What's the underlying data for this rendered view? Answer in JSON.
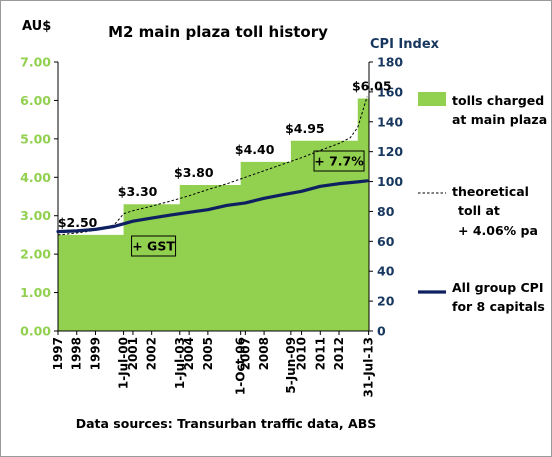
{
  "chart_data": {
    "type": "area",
    "title": "M2 main plaza toll history",
    "ylabel_left": "AU$",
    "ylabel_right": "CPI Index",
    "ylim_left": [
      0,
      7
    ],
    "yticks_left": [
      "0.00",
      "1.00",
      "2.00",
      "3.00",
      "4.00",
      "5.00",
      "6.00",
      "7.00"
    ],
    "ylim_right": [
      0,
      180
    ],
    "yticks_right": [
      "0",
      "20",
      "40",
      "60",
      "80",
      "100",
      "120",
      "140",
      "160",
      "180"
    ],
    "xlim": [
      1997,
      2013.6
    ],
    "x_tick_labels": [
      {
        "label": "1997",
        "x": 1997
      },
      {
        "label": "1998",
        "x": 1998
      },
      {
        "label": "1999",
        "x": 1999
      },
      {
        "label": "1-Jul-00",
        "x": 2000.5
      },
      {
        "label": "2001",
        "x": 2001
      },
      {
        "label": "2002",
        "x": 2002
      },
      {
        "label": "1-Jul-03",
        "x": 2003.5
      },
      {
        "label": "2004",
        "x": 2004
      },
      {
        "label": "2005",
        "x": 2005
      },
      {
        "label": "1-Oct-06",
        "x": 2006.75
      },
      {
        "label": "2007",
        "x": 2007
      },
      {
        "label": "2008",
        "x": 2008
      },
      {
        "label": "5-Jun-09",
        "x": 2009.43
      },
      {
        "label": "2010",
        "x": 2010
      },
      {
        "label": "2011",
        "x": 2011
      },
      {
        "label": "2012",
        "x": 2012
      },
      {
        "label": "31-Jul-13",
        "x": 2013.58
      }
    ],
    "series": [
      {
        "name": "tolls charged at main plaza",
        "kind": "area-step",
        "color": "#92d050",
        "axis": "left",
        "points": [
          {
            "x": 1997,
            "y": 2.5
          },
          {
            "x": 2000.5,
            "y": 2.5
          },
          {
            "x": 2000.5,
            "y": 3.3
          },
          {
            "x": 2003.5,
            "y": 3.3
          },
          {
            "x": 2003.5,
            "y": 3.8
          },
          {
            "x": 2006.75,
            "y": 3.8
          },
          {
            "x": 2006.75,
            "y": 4.4
          },
          {
            "x": 2009.43,
            "y": 4.4
          },
          {
            "x": 2009.43,
            "y": 4.95
          },
          {
            "x": 2013.0,
            "y": 4.95
          },
          {
            "x": 2013.0,
            "y": 6.05
          },
          {
            "x": 2013.6,
            "y": 6.05
          }
        ]
      },
      {
        "name": "theoretical toll at + 4.06% pa",
        "kind": "line",
        "color": "#000000",
        "dash": true,
        "axis": "left",
        "points": [
          {
            "x": 1997,
            "y": 2.5
          },
          {
            "x": 1998,
            "y": 2.55
          },
          {
            "x": 1999,
            "y": 2.62
          },
          {
            "x": 2000,
            "y": 2.76
          },
          {
            "x": 2000.5,
            "y": 3.05
          },
          {
            "x": 2001,
            "y": 3.13
          },
          {
            "x": 2002,
            "y": 3.25
          },
          {
            "x": 2003,
            "y": 3.38
          },
          {
            "x": 2004,
            "y": 3.52
          },
          {
            "x": 2005,
            "y": 3.68
          },
          {
            "x": 2006,
            "y": 3.83
          },
          {
            "x": 2007,
            "y": 4.0
          },
          {
            "x": 2008,
            "y": 4.17
          },
          {
            "x": 2009,
            "y": 4.34
          },
          {
            "x": 2010,
            "y": 4.51
          },
          {
            "x": 2011,
            "y": 4.7
          },
          {
            "x": 2012,
            "y": 4.88
          },
          {
            "x": 2012.6,
            "y": 5.03
          },
          {
            "x": 2013.0,
            "y": 5.3
          },
          {
            "x": 2013.5,
            "y": 6.1
          }
        ]
      },
      {
        "name": "All group CPI for 8 capitals",
        "kind": "line",
        "color": "#0f2060",
        "axis": "right",
        "points": [
          {
            "x": 1997,
            "y": 66.5
          },
          {
            "x": 1998,
            "y": 67.0
          },
          {
            "x": 1999,
            "y": 68.0
          },
          {
            "x": 2000,
            "y": 70.0
          },
          {
            "x": 2001,
            "y": 73.5
          },
          {
            "x": 2002,
            "y": 75.6
          },
          {
            "x": 2003,
            "y": 77.6
          },
          {
            "x": 2004,
            "y": 79.4
          },
          {
            "x": 2005,
            "y": 81.2
          },
          {
            "x": 2006,
            "y": 84.0
          },
          {
            "x": 2007,
            "y": 85.7
          },
          {
            "x": 2008,
            "y": 88.8
          },
          {
            "x": 2009,
            "y": 91.2
          },
          {
            "x": 2010,
            "y": 93.5
          },
          {
            "x": 2011,
            "y": 96.8
          },
          {
            "x": 2012,
            "y": 98.6
          },
          {
            "x": 2013,
            "y": 99.8
          },
          {
            "x": 2013.5,
            "y": 100.5
          }
        ]
      }
    ],
    "price_labels": [
      {
        "text": "$2.50",
        "x": 1997.3,
        "y": 2.5
      },
      {
        "text": "$3.30",
        "x": 2000.5,
        "y": 3.3
      },
      {
        "text": "$3.80",
        "x": 2003.5,
        "y": 3.8
      },
      {
        "text": "$4.40",
        "x": 2006.75,
        "y": 4.4
      },
      {
        "text": "$4.95",
        "x": 2009.43,
        "y": 4.95
      },
      {
        "text": "$6.05",
        "x": 2013.0,
        "y": 6.05
      }
    ],
    "annotations": {
      "gst": "+ GST",
      "cpi_growth": "+ 7.7%"
    },
    "legend": [
      {
        "label_line1": "tolls charged",
        "label_line2": "at main plaza",
        "swatch": "area"
      },
      {
        "label_line1": "theoretical",
        "label_line2": "toll at",
        "label_line3": "+ 4.06% pa",
        "swatch": "dash"
      },
      {
        "label_line1": "All group CPI",
        "label_line2": "for 8 capitals",
        "swatch": "line"
      }
    ],
    "legend_position": "right",
    "footnote": "Data sources: Transurban traffic data, ABS",
    "colors": {
      "plot_bg": "#ffffff",
      "area": "#92d050",
      "axis_text_left": "#92d050",
      "axis_text_right": "#17375e",
      "cpi_line": "#0f2060"
    }
  }
}
